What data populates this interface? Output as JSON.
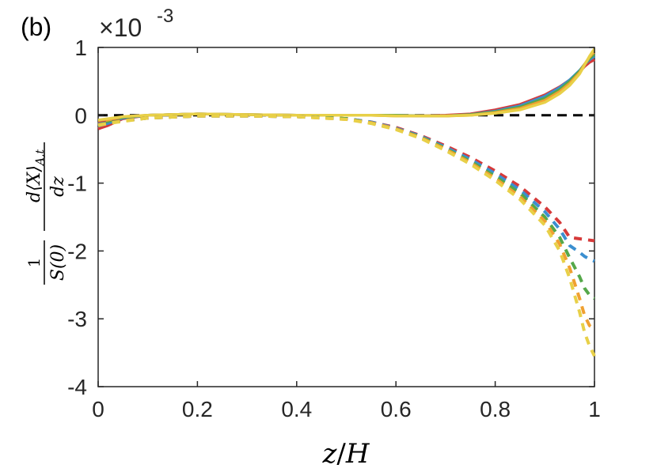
{
  "panel_label": "(b)",
  "colors": {
    "red": "#d63a3a",
    "blue": "#3b8fd0",
    "green": "#55a84a",
    "orange": "#f0a030",
    "yellow": "#e8d048",
    "zero_line": "#000000",
    "axes": "#262626"
  },
  "chart_data": {
    "type": "line",
    "xlabel": "z/H",
    "ylabel": "1/S(0) d⟨X⟩_{A,t}/dz",
    "ylabel_parts": {
      "frac1_num": "1",
      "frac1_den": "S(0)",
      "frac2_num": "d⟨X⟩",
      "frac2_num_sub": "A,t",
      "frac2_den": "dz"
    },
    "xlabel_parts": {
      "left": "z",
      "slash": "/",
      "right": "H"
    },
    "xlim": [
      0,
      1
    ],
    "ylim": [
      -4,
      1
    ],
    "y_multiplier": {
      "base": "×10",
      "exponent": "-3"
    },
    "xticks": [
      0,
      0.2,
      0.4,
      0.6,
      0.8,
      1
    ],
    "xtick_labels": [
      "0",
      "0.2",
      "0.4",
      "0.6",
      "0.8",
      "1"
    ],
    "yticks": [
      1,
      0,
      -1,
      -2,
      -3,
      -4
    ],
    "ytick_labels": [
      "1",
      "0",
      "-1",
      "-2",
      "-3",
      "-4"
    ],
    "grid": false,
    "legend": "none",
    "zero_line": {
      "y": 0,
      "style": "dashed",
      "color": "#000000"
    },
    "x": [
      0,
      0.02,
      0.05,
      0.1,
      0.2,
      0.3,
      0.4,
      0.5,
      0.55,
      0.6,
      0.65,
      0.7,
      0.75,
      0.8,
      0.85,
      0.9,
      0.93,
      0.95,
      0.97,
      0.98,
      0.99,
      1.0
    ],
    "series": [
      {
        "color": "#d63a3a",
        "style": "solid",
        "values": [
          -0.2,
          -0.15,
          -0.05,
          0,
          0.02,
          0.01,
          0,
          0,
          0,
          0,
          -0.01,
          0,
          0.02,
          0.08,
          0.16,
          0.3,
          0.42,
          0.52,
          0.64,
          0.72,
          0.78,
          0.82
        ]
      },
      {
        "color": "#3b8fd0",
        "style": "solid",
        "values": [
          -0.16,
          -0.12,
          -0.04,
          0,
          0.02,
          0.01,
          0,
          0,
          0,
          0,
          -0.01,
          -0.01,
          0.01,
          0.06,
          0.14,
          0.28,
          0.41,
          0.52,
          0.66,
          0.75,
          0.82,
          0.87
        ]
      },
      {
        "color": "#55a84a",
        "style": "solid",
        "values": [
          -0.12,
          -0.09,
          -0.03,
          0,
          0.02,
          0.01,
          0,
          0,
          0,
          0,
          -0.01,
          -0.01,
          0.01,
          0.05,
          0.12,
          0.25,
          0.38,
          0.5,
          0.65,
          0.75,
          0.84,
          0.9
        ]
      },
      {
        "color": "#f0a030",
        "style": "solid",
        "values": [
          -0.09,
          -0.07,
          -0.02,
          0,
          0.02,
          0.01,
          0,
          0,
          0,
          -0.01,
          -0.01,
          -0.01,
          0,
          0.04,
          0.1,
          0.22,
          0.35,
          0.47,
          0.63,
          0.75,
          0.86,
          0.94
        ]
      },
      {
        "color": "#e8d048",
        "style": "solid",
        "values": [
          -0.07,
          -0.05,
          -0.02,
          0,
          0.02,
          0.01,
          0,
          0,
          0,
          -0.01,
          -0.01,
          -0.01,
          0,
          0.03,
          0.08,
          0.19,
          0.32,
          0.44,
          0.61,
          0.74,
          0.87,
          0.98
        ]
      },
      {
        "color": "#d63a3a",
        "style": "dashed",
        "values": [
          -0.12,
          -0.1,
          -0.08,
          -0.04,
          -0.01,
          -0.01,
          -0.02,
          -0.05,
          -0.1,
          -0.18,
          -0.3,
          -0.45,
          -0.62,
          -0.82,
          -1.05,
          -1.35,
          -1.58,
          -1.8,
          -1.82,
          -1.83,
          -1.84,
          -1.85
        ]
      },
      {
        "color": "#3b8fd0",
        "style": "dashed",
        "values": [
          -0.13,
          -0.11,
          -0.08,
          -0.04,
          -0.01,
          -0.01,
          -0.02,
          -0.05,
          -0.1,
          -0.19,
          -0.31,
          -0.47,
          -0.65,
          -0.86,
          -1.1,
          -1.42,
          -1.68,
          -1.92,
          -2.02,
          -2.08,
          -2.12,
          -2.15
        ]
      },
      {
        "color": "#55a84a",
        "style": "dashed",
        "values": [
          -0.14,
          -0.11,
          -0.08,
          -0.04,
          -0.01,
          -0.01,
          -0.02,
          -0.05,
          -0.11,
          -0.2,
          -0.32,
          -0.49,
          -0.68,
          -0.9,
          -1.15,
          -1.5,
          -1.8,
          -2.1,
          -2.38,
          -2.55,
          -2.65,
          -2.7
        ]
      },
      {
        "color": "#f0a030",
        "style": "dashed",
        "values": [
          -0.14,
          -0.12,
          -0.08,
          -0.04,
          -0.01,
          -0.01,
          -0.02,
          -0.06,
          -0.11,
          -0.2,
          -0.33,
          -0.5,
          -0.7,
          -0.93,
          -1.2,
          -1.56,
          -1.9,
          -2.25,
          -2.7,
          -2.95,
          -3.1,
          -3.15
        ]
      },
      {
        "color": "#e8d048",
        "style": "dashed",
        "values": [
          -0.15,
          -0.12,
          -0.09,
          -0.04,
          -0.01,
          -0.01,
          -0.02,
          -0.06,
          -0.12,
          -0.21,
          -0.34,
          -0.52,
          -0.72,
          -0.96,
          -1.24,
          -1.62,
          -2.0,
          -2.4,
          -2.9,
          -3.2,
          -3.4,
          -3.55
        ]
      }
    ]
  }
}
